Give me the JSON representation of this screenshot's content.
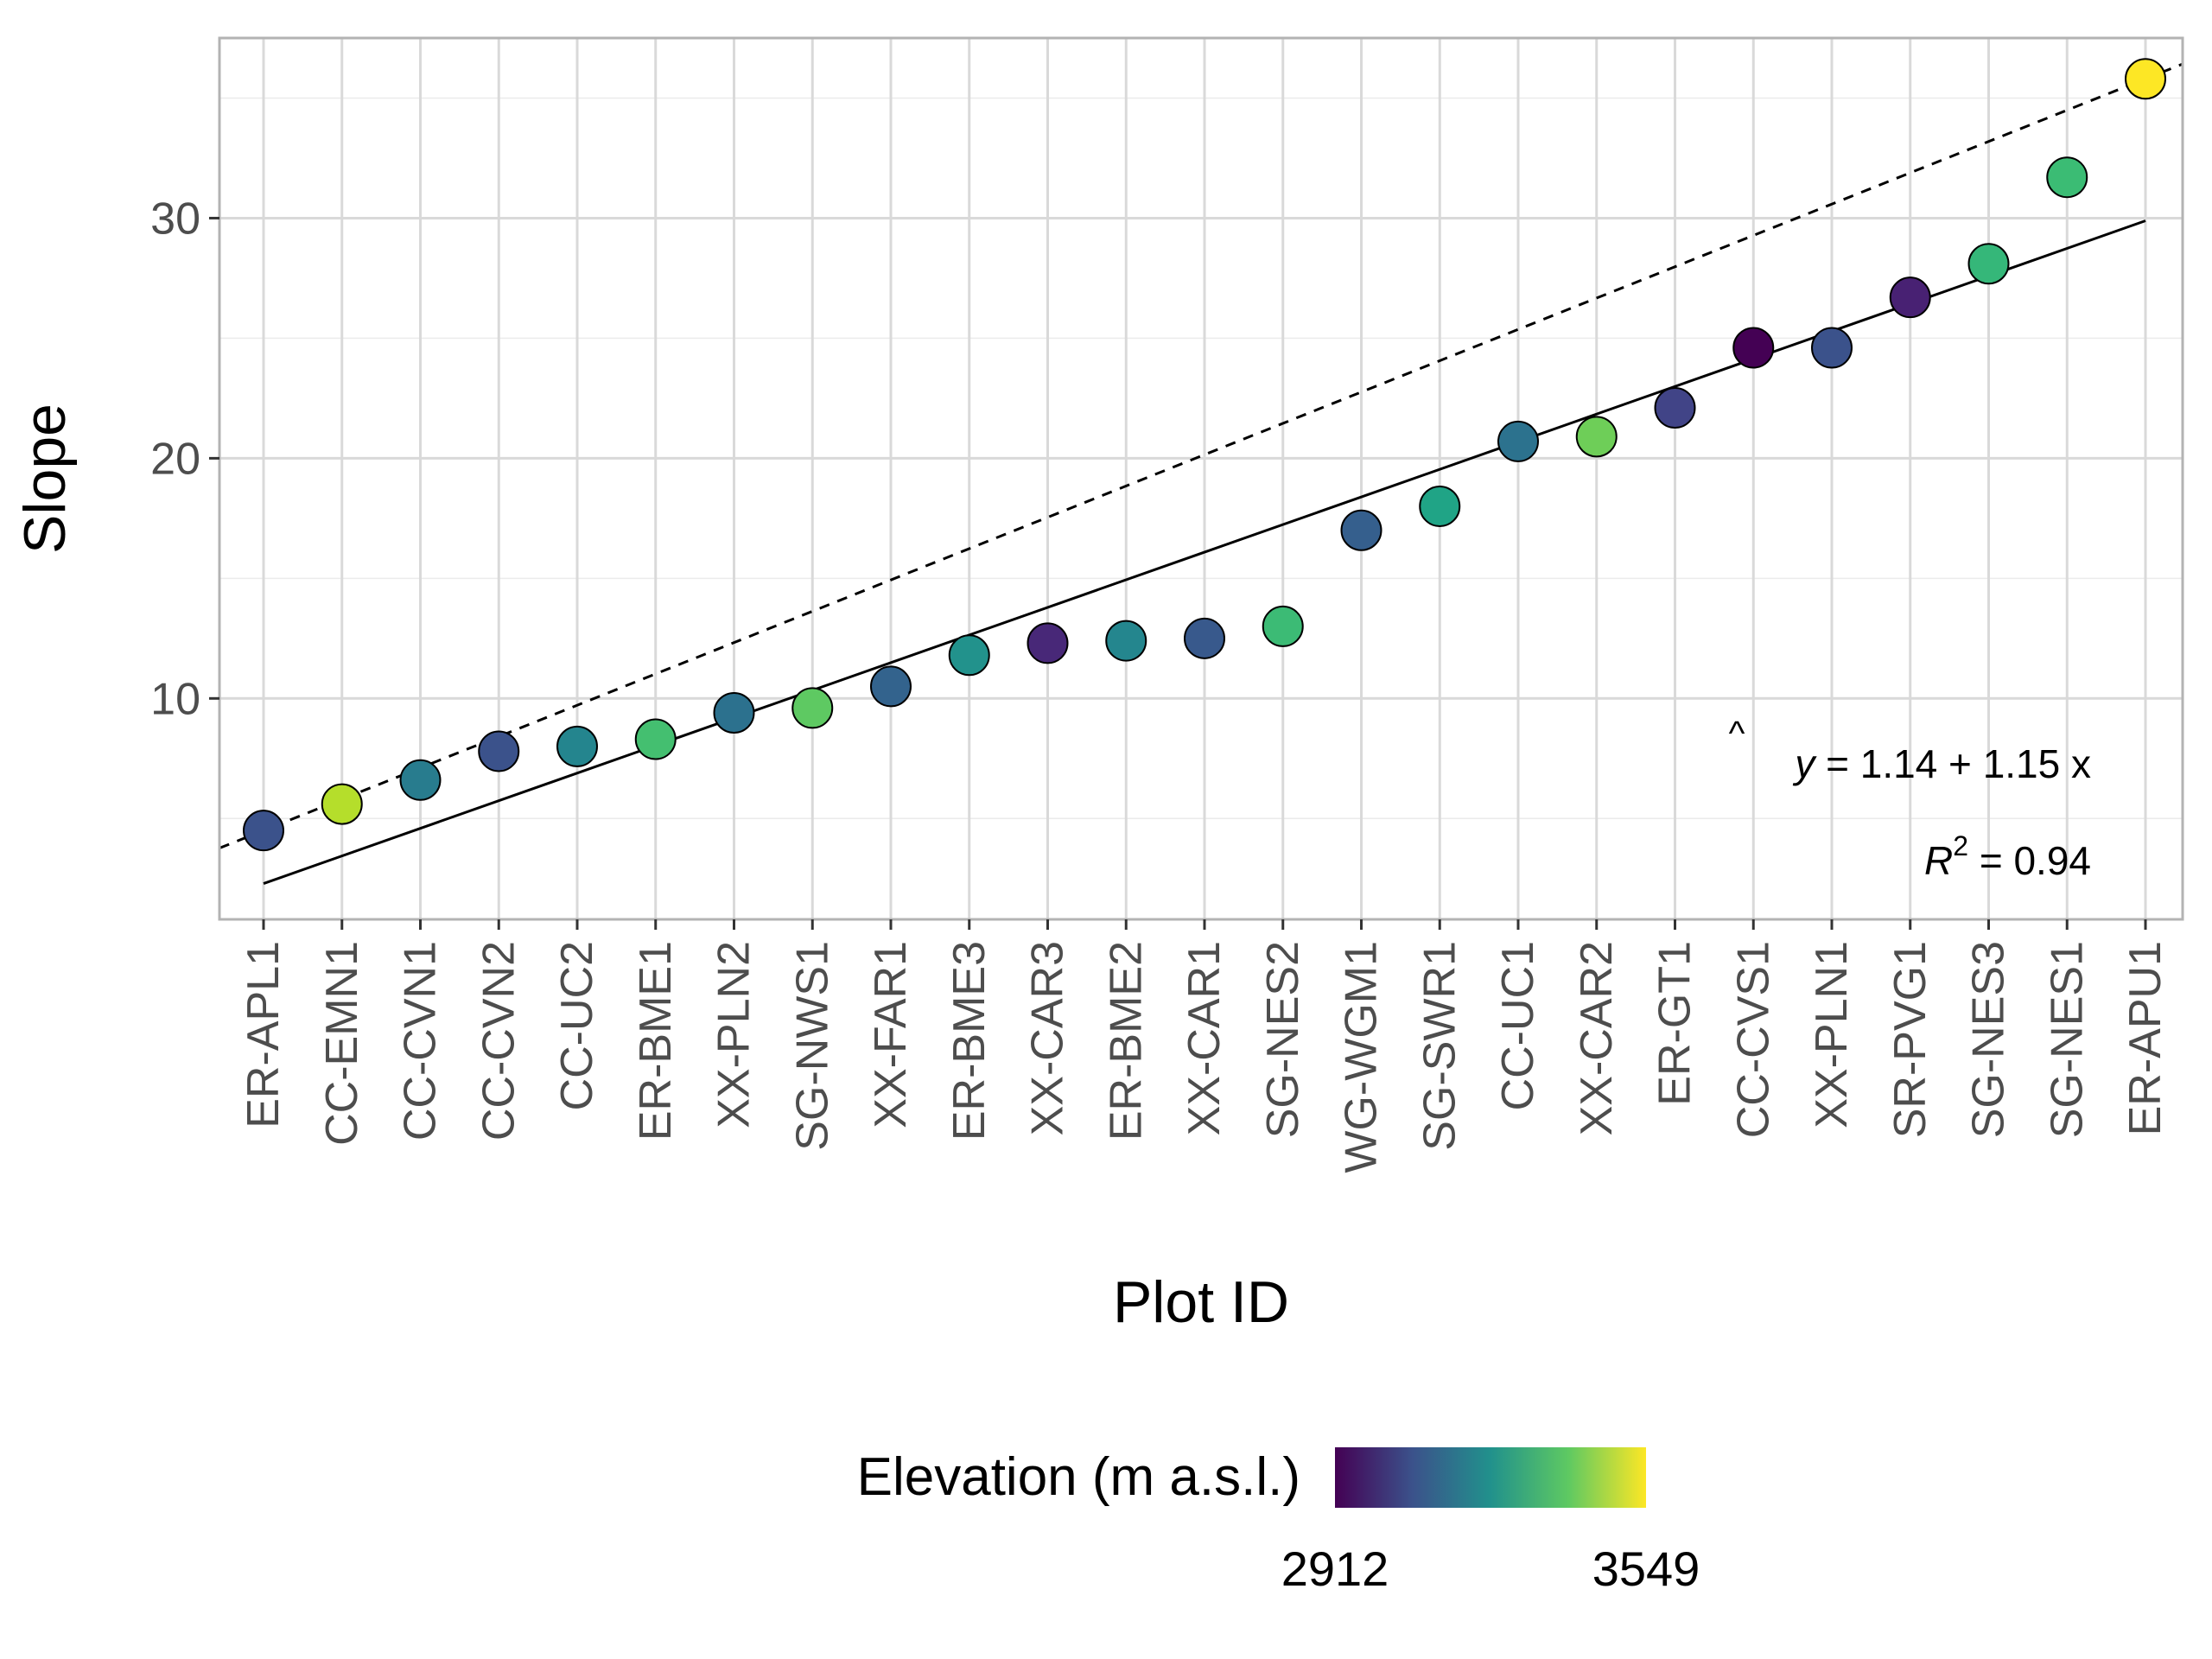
{
  "chart_data": {
    "type": "scatter",
    "xlabel": "Plot ID",
    "ylabel": "Slope",
    "ylim": [
      0.8,
      37.5
    ],
    "yticks": [
      10,
      20,
      30
    ],
    "grid": true,
    "categories": [
      "ER-APL1",
      "CC-EMN1",
      "CC-CVN1",
      "CC-CVN2",
      "CC-UC2",
      "ER-BME1",
      "XX-PLN2",
      "SG-NWS1",
      "XX-FAR1",
      "ER-BME3",
      "XX-CAR3",
      "ER-BME2",
      "XX-CAR1",
      "SG-NES2",
      "WG-WGM1",
      "SG-SWR1",
      "CC-UC1",
      "XX-CAR2",
      "ER-GT1",
      "CC-CVS1",
      "XX-PLN1",
      "SR-PVG1",
      "SG-NES3",
      "SG-NES1",
      "ER-APU1"
    ],
    "values": [
      4.5,
      5.6,
      6.6,
      7.8,
      8.0,
      8.3,
      9.4,
      9.6,
      10.5,
      11.8,
      12.3,
      12.4,
      12.5,
      13.0,
      17.0,
      18.0,
      20.7,
      20.9,
      22.1,
      24.6,
      24.6,
      26.7,
      28.1,
      31.7,
      35.8
    ],
    "colors": [
      "#3b528b",
      "#b5de2b",
      "#287c8e",
      "#3b528b",
      "#24858e",
      "#44bf70",
      "#2c718e",
      "#5ec962",
      "#33638d",
      "#22928c",
      "#482878",
      "#24868e",
      "#38598c",
      "#3cbb75",
      "#355f8d",
      "#20a486",
      "#2c728e",
      "#6ece58",
      "#414487",
      "#440154",
      "#3b528b",
      "#482173",
      "#35b779",
      "#3bbc74",
      "#fde725"
    ],
    "fit_line": {
      "intercept": 1.14,
      "slope": 1.15,
      "style": "solid"
    },
    "identity_line": {
      "style": "dashed"
    },
    "annotations": {
      "equation_yhat": "y",
      "equation_rest": " = 1.14 + 1.15 x",
      "r2_label": "R",
      "r2_sup": "2",
      "r2_value": " = 0.94"
    },
    "legend": {
      "title": "Elevation (m a.s.l.)",
      "min_label": "2912",
      "max_label": "3549",
      "gradient": [
        "#440154",
        "#3b528b",
        "#21918c",
        "#5ec962",
        "#fde725"
      ],
      "placement": "bottom"
    }
  }
}
